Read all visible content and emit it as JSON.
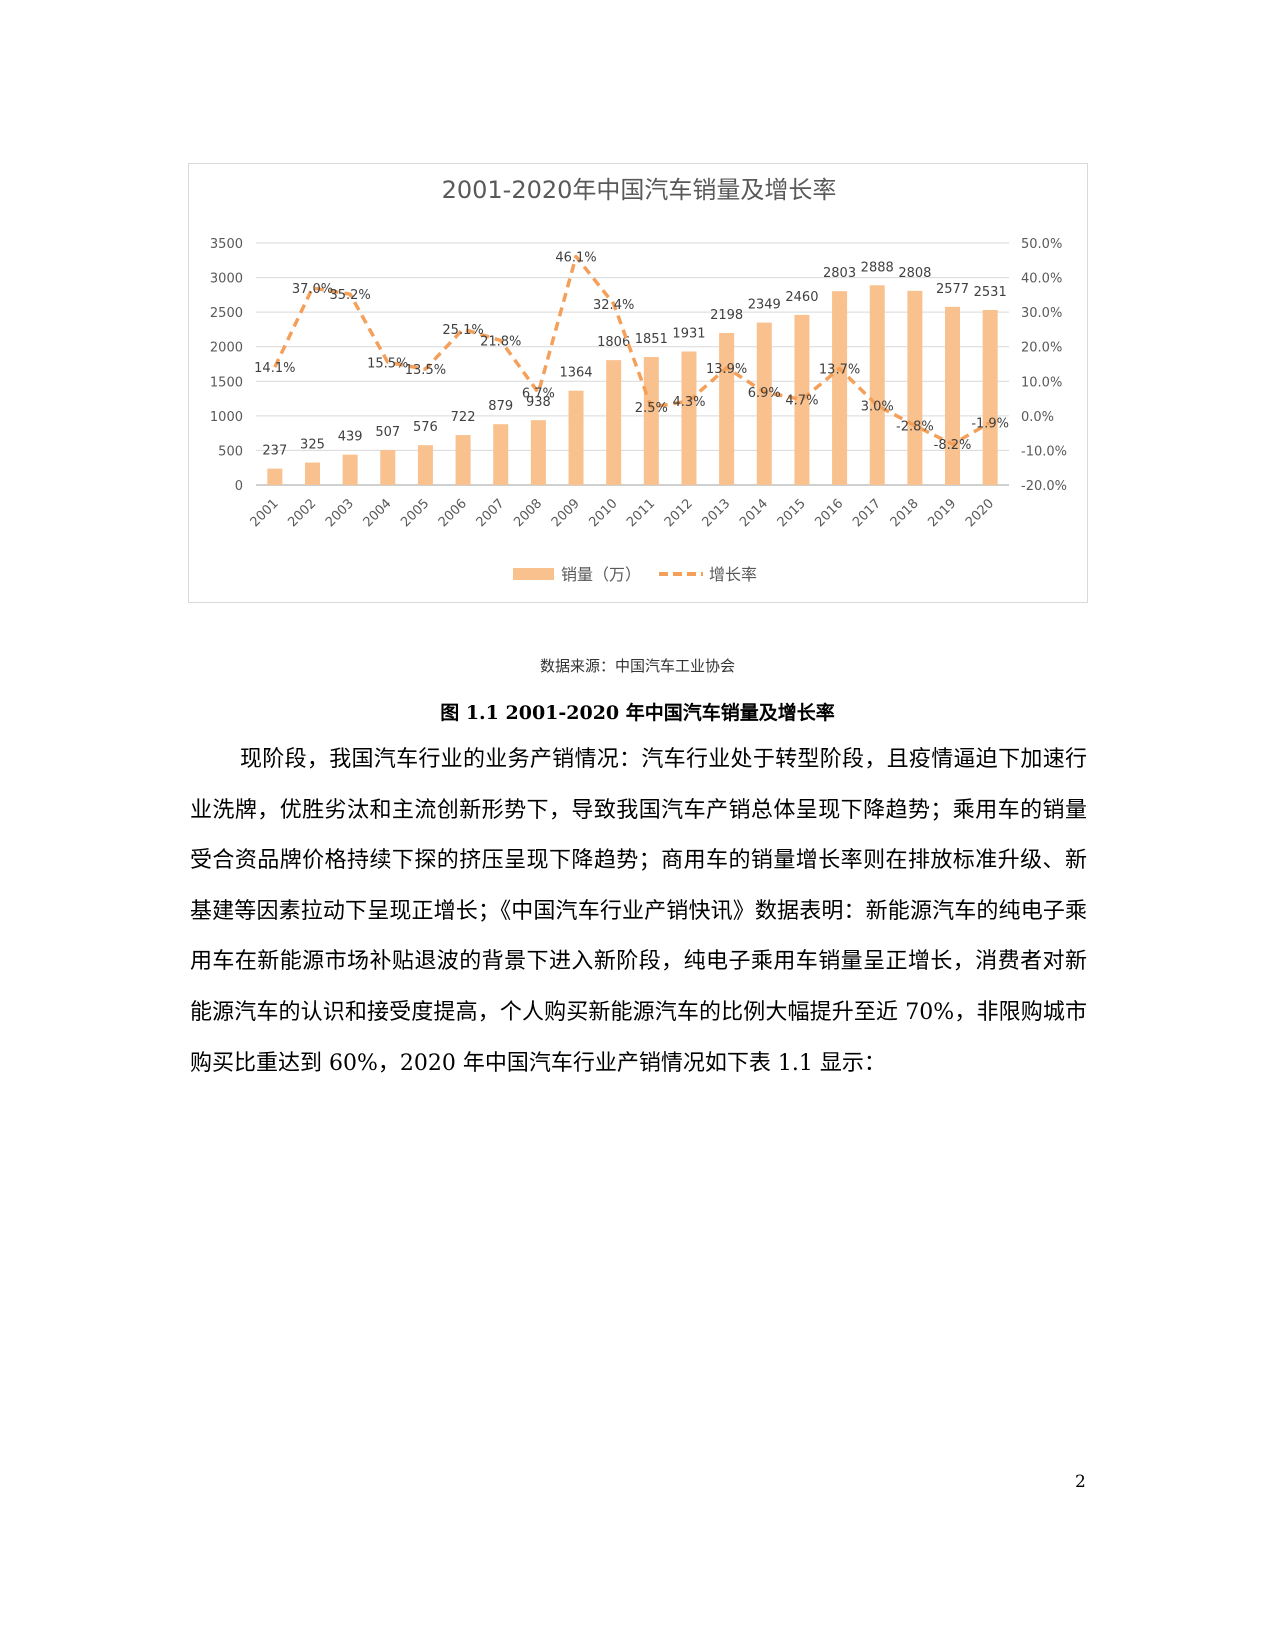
{
  "chart_data": {
    "type": "bar",
    "title": "2001-2020年中国汽车销量及增长率",
    "categories": [
      "2001",
      "2002",
      "2003",
      "2004",
      "2005",
      "2006",
      "2007",
      "2008",
      "2009",
      "2010",
      "2011",
      "2012",
      "2013",
      "2014",
      "2015",
      "2016",
      "2017",
      "2018",
      "2019",
      "2020"
    ],
    "series": [
      {
        "name": "销量（万）",
        "type": "bar",
        "axis": "left",
        "color": "#f8c18e",
        "values": [
          237,
          325,
          439,
          507,
          576,
          722,
          879,
          938,
          1364,
          1806,
          1851,
          1931,
          2198,
          2349,
          2460,
          2803,
          2888,
          2808,
          2577,
          2531
        ],
        "labels": [
          "237",
          "325",
          "439",
          "507",
          "576",
          "722",
          "879",
          "938",
          "1364",
          "1806",
          "1851",
          "1931",
          "2198",
          "2349",
          "2460",
          "2803",
          "2888",
          "2808",
          "2577",
          "2531"
        ]
      },
      {
        "name": "增长率",
        "type": "line",
        "style": "dashed",
        "axis": "right",
        "color": "#f4a05a",
        "values": [
          14.1,
          37.0,
          35.2,
          15.5,
          13.5,
          25.1,
          21.8,
          6.7,
          46.1,
          32.4,
          2.5,
          4.3,
          13.9,
          6.9,
          4.7,
          13.7,
          3.0,
          -2.8,
          -8.2,
          -1.9
        ],
        "labels": [
          "14.1%",
          "37.0%",
          "35.2%",
          "15.5%",
          "13.5%",
          "25.1%",
          "21.8%",
          "6.7%",
          "46.1%",
          "32.4%",
          "2.5%",
          "4.3%",
          "13.9%",
          "6.9%",
          "4.7%",
          "13.7%",
          "3.0%",
          "-2.8%",
          "-8.2%",
          "-1.9%"
        ]
      }
    ],
    "y_left": {
      "range": [
        0,
        3500
      ],
      "ticks": [
        "0",
        "500",
        "1000",
        "1500",
        "2000",
        "2500",
        "3000",
        "3500"
      ]
    },
    "y_right": {
      "range": [
        -20,
        50
      ],
      "ticks": [
        "-20.0%",
        "-10.0%",
        "0.0%",
        "10.0%",
        "20.0%",
        "30.0%",
        "40.0%",
        "50.0%"
      ]
    },
    "xlabel": "",
    "ylabel": "",
    "grid": true,
    "legend_position": "bottom"
  },
  "figure": {
    "source": "数据来源：中国汽车工业协会",
    "caption": "图 1.1 2001-2020 年中国汽车销量及增长率"
  },
  "body": {
    "paragraph": "现阶段，我国汽车行业的业务产销情况：汽车行业处于转型阶段，且疫情逼迫下加速行业洗牌，优胜劣汰和主流创新形势下，导致我国汽车产销总体呈现下降趋势；乘用车的销量受合资品牌价格持续下探的挤压呈现下降趋势；商用车的销量增长率则在排放标准升级、新基建等因素拉动下呈现正增长；《中国汽车行业产销快讯》数据表明：新能源汽车的纯电子乘用车在新能源市场补贴退波的背景下进入新阶段，纯电子乘用车销量呈正增长，消费者对新能源汽车的认识和接受度提高，个人购买新能源汽车的比例大幅提升至近 70%，非限购城市购买比重达到 60%，2020 年中国汽车行业产销情况如下表 1.1 显示："
  },
  "page": {
    "number": "2"
  }
}
